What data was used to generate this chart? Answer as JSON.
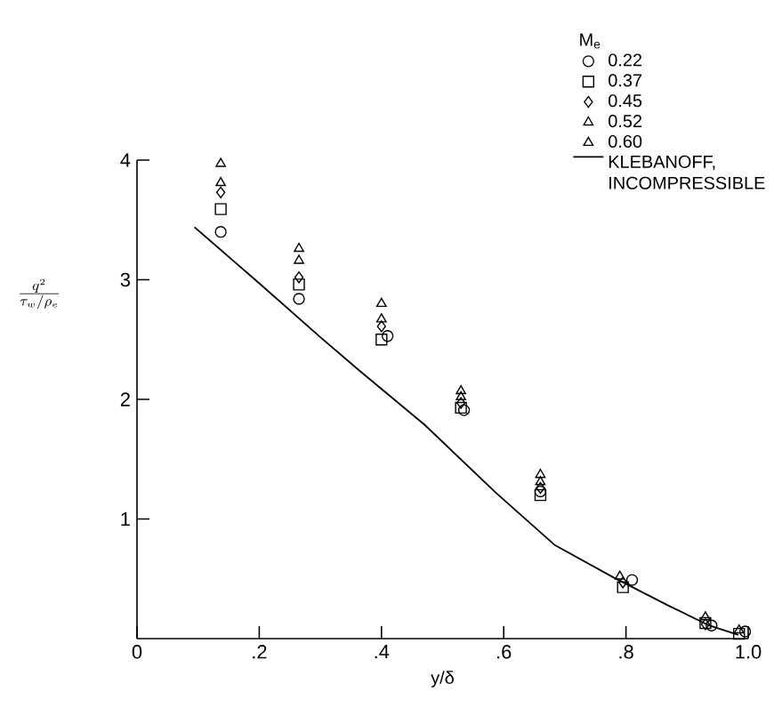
{
  "chart_data": {
    "type": "scatter",
    "xlabel": "y/δ",
    "ylabel": "\\frac{q^{2}}{\\tau_{w}/\\rho_{e}}",
    "legend_title": "M$_{e}$",
    "legend": "top right",
    "xlim": [
      0,
      1.0
    ],
    "ylim": [
      0,
      4
    ],
    "xticks": [
      0,
      {
        "value": 0.2,
        "label": ".2"
      },
      {
        "value": 0.4,
        "label": ".4"
      },
      {
        "value": 0.6,
        "label": ".6"
      },
      {
        "value": 0.8,
        "label": ".8"
      },
      {
        "value": 1.0,
        "label": "1.0"
      }
    ],
    "yticks": [
      1,
      2,
      3,
      4
    ],
    "series": [
      {
        "name": "0.22",
        "color": "#000000",
        "marker": "circle",
        "x": [
          0.137,
          0.265,
          0.41,
          0.535,
          0.66,
          0.81,
          0.94,
          0.995
        ],
        "values": [
          3.4,
          2.84,
          2.53,
          1.91,
          1.23,
          0.49,
          0.11,
          0.06
        ]
      },
      {
        "name": "0.37",
        "color": "#000000",
        "marker": "square",
        "x": [
          0.137,
          0.265,
          0.4,
          0.53,
          0.66,
          0.795,
          0.93,
          0.985
        ],
        "values": [
          3.59,
          2.96,
          2.5,
          1.93,
          1.2,
          0.43,
          0.13,
          0.04
        ]
      },
      {
        "name": "0.45",
        "color": "#000000",
        "marker": "diamond",
        "x": [
          0.137,
          0.265,
          0.4,
          0.53,
          0.66,
          0.795,
          0.93
        ],
        "values": [
          3.73,
          3.02,
          2.61,
          1.97,
          1.26,
          0.47,
          0.12
        ]
      },
      {
        "name": "0.52",
        "color": "#000000",
        "marker": "triangle",
        "x": [
          0.137,
          0.265,
          0.4,
          0.53,
          0.66,
          0.795,
          0.93,
          0.985
        ],
        "values": [
          3.81,
          3.16,
          2.67,
          2.02,
          1.31,
          null,
          0.18,
          0.07
        ]
      },
      {
        "name": "0.60",
        "color": "#000000",
        "marker": "triangle",
        "x": [
          0.137,
          0.265,
          0.4,
          0.53,
          0.66,
          0.79
        ],
        "values": [
          3.97,
          3.26,
          2.8,
          2.07,
          1.37,
          0.52
        ]
      },
      {
        "name": "KLEBANOFF, INCOMPRESSIBLE",
        "type": "line",
        "color": "#000000",
        "marker": "none",
        "line_style": "solid",
        "x": [
          0.094,
          0.2,
          0.3,
          0.364,
          0.47,
          0.587,
          0.684,
          0.78,
          0.868,
          0.936,
          0.984
        ],
        "values": [
          3.44,
          2.97,
          2.52,
          2.24,
          1.79,
          1.22,
          0.78,
          0.51,
          0.28,
          0.11,
          0.03
        ]
      }
    ]
  }
}
